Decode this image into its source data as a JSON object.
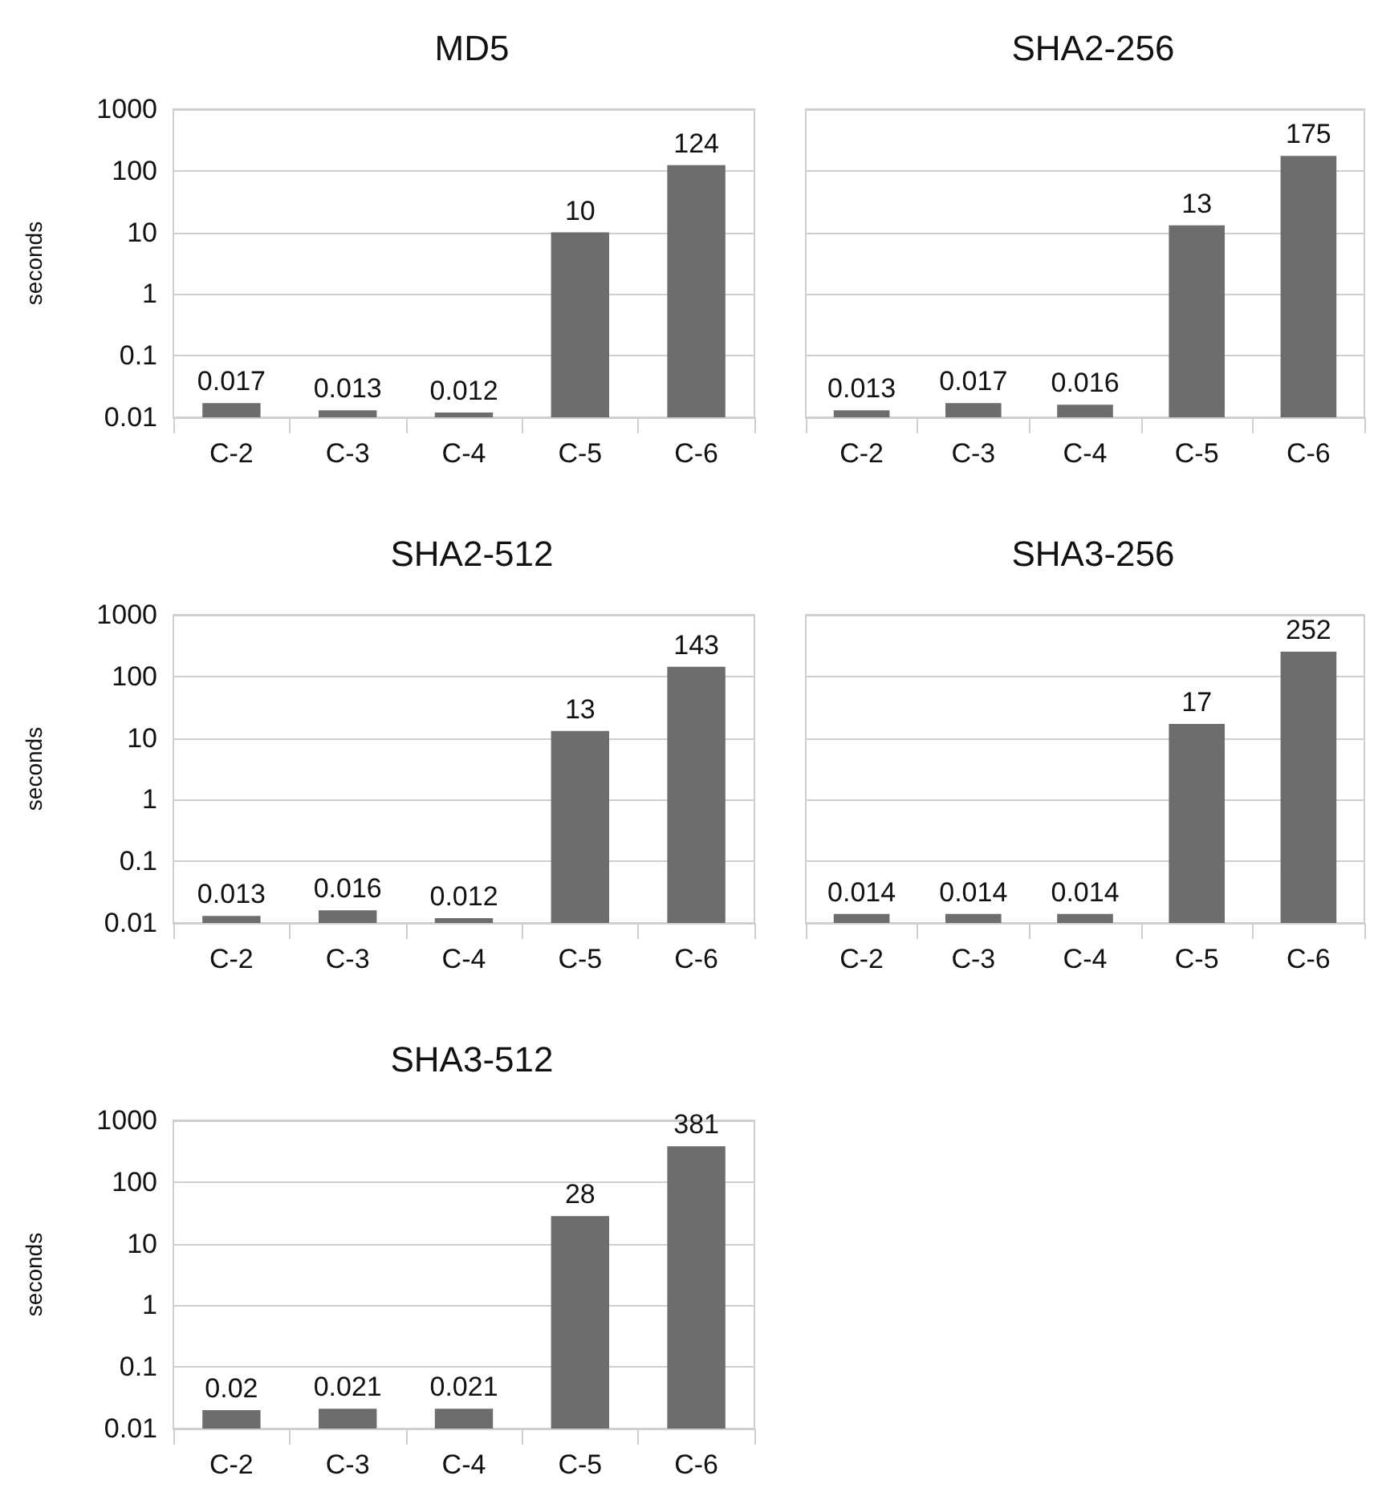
{
  "chart_data": [
    {
      "type": "bar",
      "title": "MD5",
      "ylabel": "seconds",
      "categories": [
        "C-2",
        "C-3",
        "C-4",
        "C-5",
        "C-6"
      ],
      "values": [
        0.017,
        0.013,
        0.012,
        10,
        124
      ],
      "color": "#6d6d6d",
      "log": "y",
      "ylim": [
        0.01,
        1000
      ],
      "yticks": [
        0.01,
        0.1,
        1,
        10,
        100,
        1000
      ],
      "grid": "y",
      "data_labels": true
    },
    {
      "type": "bar",
      "title": "SHA2-256",
      "categories": [
        "C-2",
        "C-3",
        "C-4",
        "C-5",
        "C-6"
      ],
      "values": [
        0.013,
        0.017,
        0.016,
        13,
        175
      ],
      "color": "#6d6d6d",
      "log": "y",
      "ylim": [
        0.01,
        1000
      ],
      "yticks": [
        0.01,
        0.1,
        1,
        10,
        100,
        1000
      ],
      "grid": "y",
      "data_labels": true,
      "tick_labels": "x"
    },
    {
      "type": "bar",
      "title": "SHA2-512",
      "ylabel": "seconds",
      "categories": [
        "C-2",
        "C-3",
        "C-4",
        "C-5",
        "C-6"
      ],
      "values": [
        0.013,
        0.016,
        0.012,
        13,
        143
      ],
      "color": "#6d6d6d",
      "log": "y",
      "ylim": [
        0.01,
        1000
      ],
      "yticks": [
        0.01,
        0.1,
        1,
        10,
        100,
        1000
      ],
      "grid": "y",
      "data_labels": true
    },
    {
      "type": "bar",
      "title": "SHA3-256",
      "categories": [
        "C-2",
        "C-3",
        "C-4",
        "C-5",
        "C-6"
      ],
      "values": [
        0.014,
        0.014,
        0.014,
        17,
        252
      ],
      "color": "#6d6d6d",
      "log": "y",
      "ylim": [
        0.01,
        1000
      ],
      "yticks": [
        0.01,
        0.1,
        1,
        10,
        100,
        1000
      ],
      "grid": "y",
      "data_labels": true,
      "tick_labels": "x"
    },
    {
      "type": "bar",
      "title": "SHA3-512",
      "ylabel": "seconds",
      "categories": [
        "C-2",
        "C-3",
        "C-4",
        "C-5",
        "C-6"
      ],
      "values": [
        0.02,
        0.021,
        0.021,
        28,
        381
      ],
      "color": "#6d6d6d",
      "log": "y",
      "ylim": [
        0.01,
        1000
      ],
      "yticks": [
        0.01,
        0.1,
        1,
        10,
        100,
        1000
      ],
      "grid": "y",
      "data_labels": true
    }
  ]
}
